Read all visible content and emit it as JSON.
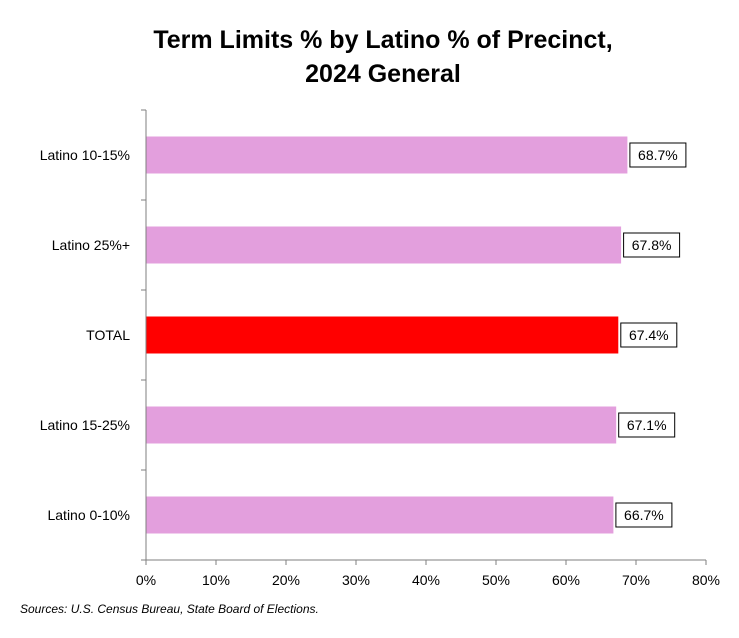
{
  "chart_data": {
    "type": "bar",
    "orientation": "horizontal",
    "title_lines": [
      "Term Limits % by Latino % of Precinct,",
      "2024 General"
    ],
    "categories": [
      "Latino 10-15%",
      "Latino 25%+",
      "TOTAL",
      "Latino 15-25%",
      "Latino 0-10%"
    ],
    "values": [
      68.7,
      67.8,
      67.4,
      67.1,
      66.7
    ],
    "data_labels": [
      "68.7%",
      "67.8%",
      "67.4%",
      "67.1%",
      "66.7%"
    ],
    "bar_colors": [
      "#e39fdd",
      "#e39fdd",
      "#ff0000",
      "#e39fdd",
      "#e39fdd"
    ],
    "xlim": [
      0,
      80
    ],
    "x_ticks": [
      0,
      10,
      20,
      30,
      40,
      50,
      60,
      70,
      80
    ],
    "x_tick_labels": [
      "0%",
      "10%",
      "20%",
      "30%",
      "40%",
      "50%",
      "60%",
      "70%",
      "80%"
    ],
    "xlabel": "",
    "ylabel": "",
    "grid": false,
    "legend": "none"
  },
  "source_note": "Sources: U.S. Census Bureau, State Board of Elections."
}
